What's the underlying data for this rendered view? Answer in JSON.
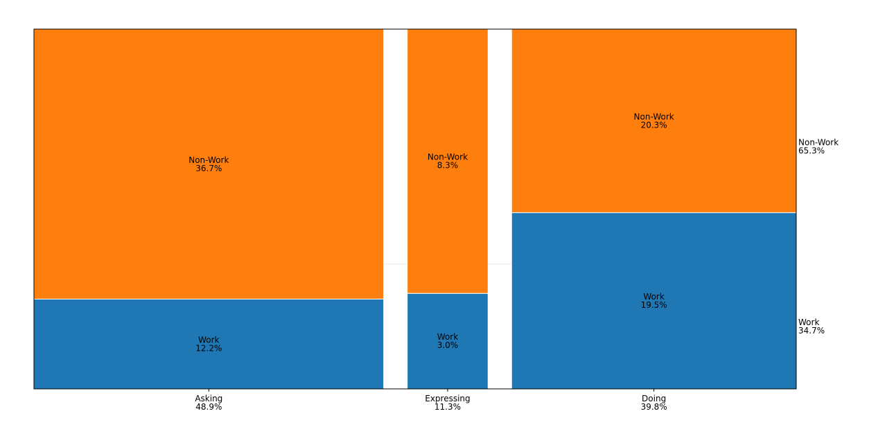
{
  "chart_data": {
    "type": "mosaic",
    "title": "",
    "categories": [
      {
        "name": "Asking",
        "share_label": "48.9%",
        "share": 48.9
      },
      {
        "name": "Expressing",
        "share_label": "11.3%",
        "share": 11.3
      },
      {
        "name": "Doing",
        "share_label": "39.8%",
        "share": 39.8
      }
    ],
    "segments": [
      {
        "name": "Work",
        "color": "#1f77b4"
      },
      {
        "name": "Non-Work",
        "color": "#ff7f0e"
      }
    ],
    "cells": [
      {
        "category": "Asking",
        "segment": "Work",
        "value": 12.2,
        "label": "12.2%"
      },
      {
        "category": "Asking",
        "segment": "Non-Work",
        "value": 36.7,
        "label": "36.7%"
      },
      {
        "category": "Expressing",
        "segment": "Work",
        "value": 3.0,
        "label": "3.0%"
      },
      {
        "category": "Expressing",
        "segment": "Non-Work",
        "value": 8.3,
        "label": "8.3%"
      },
      {
        "category": "Doing",
        "segment": "Work",
        "value": 19.5,
        "label": "19.5%"
      },
      {
        "category": "Doing",
        "segment": "Non-Work",
        "value": 20.3,
        "label": "20.3%"
      }
    ],
    "segment_totals": [
      {
        "segment": "Work",
        "value": 34.7,
        "label": "34.7%"
      },
      {
        "segment": "Non-Work",
        "value": 65.3,
        "label": "65.3%"
      }
    ]
  }
}
